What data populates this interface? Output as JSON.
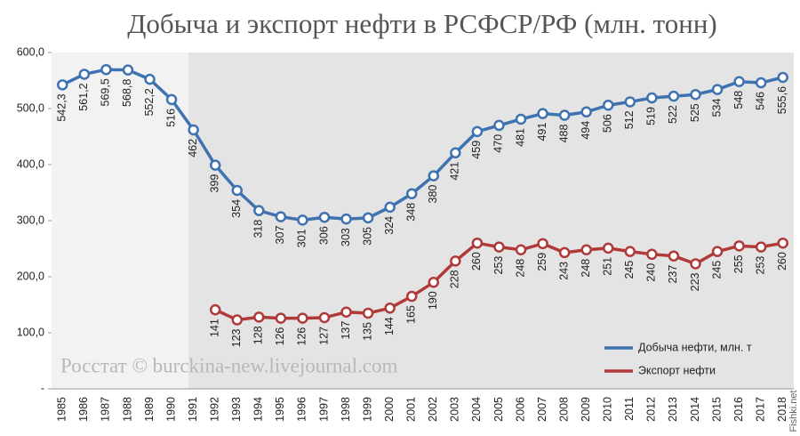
{
  "chart_data": {
    "type": "line",
    "title": "Добыча и экспорт нефти в РСФСР/РФ (млн. тонн)",
    "annotations": [
      "Росстат © burckina-new.livejournal.com",
      "Fishki.net"
    ],
    "categories": [
      "1985",
      "1986",
      "1987",
      "1988",
      "1989",
      "1990",
      "1991",
      "1992",
      "1993",
      "1994",
      "1995",
      "1996",
      "1997",
      "1998",
      "1999",
      "2000",
      "2001",
      "2002",
      "2003",
      "2004",
      "2005",
      "2006",
      "2007",
      "2008",
      "2009",
      "2010",
      "2011",
      "2012",
      "2013",
      "2014",
      "2015",
      "2016",
      "2017",
      "2018"
    ],
    "series": [
      {
        "name": "Добыча нефти, млн. т",
        "color": "#3f72b0",
        "values": [
          542.3,
          561.2,
          569.5,
          568.8,
          552.2,
          516,
          462,
          399,
          354,
          318,
          307,
          301,
          306,
          303,
          305,
          324,
          348,
          380,
          421,
          459,
          470,
          481,
          491,
          488,
          494,
          506,
          512,
          519,
          522,
          525,
          534,
          548,
          546,
          555.6
        ],
        "value_labels": [
          "542,3",
          "561,2",
          "569,5",
          "568,8",
          "552,2",
          "516",
          "462",
          "399",
          "354",
          "318",
          "307",
          "301",
          "306",
          "303",
          "305",
          "324",
          "348",
          "380",
          "421",
          "459",
          "470",
          "481",
          "491",
          "488",
          "494",
          "506",
          "512",
          "519",
          "522",
          "525",
          "534",
          "548",
          "546",
          "555,6"
        ]
      },
      {
        "name": "Экспорт нефти",
        "color": "#b03a3a",
        "values": [
          null,
          null,
          null,
          null,
          null,
          null,
          null,
          141,
          123,
          128,
          126,
          126,
          127,
          137,
          135,
          144,
          165,
          190,
          228,
          260,
          253,
          248,
          259,
          243,
          248,
          251,
          245,
          240,
          237,
          223,
          245,
          255,
          253,
          260
        ]
      }
    ],
    "ylim": [
      0,
      600
    ],
    "yticks": [
      {
        "value": 0,
        "label": "-"
      },
      {
        "value": 100,
        "label": "100,0"
      },
      {
        "value": 200,
        "label": "200,0"
      },
      {
        "value": 300,
        "label": "300,0"
      },
      {
        "value": 400,
        "label": "400,0"
      },
      {
        "value": 500,
        "label": "500,0"
      },
      {
        "value": 600,
        "label": "600,0"
      }
    ],
    "legend": "lower right"
  }
}
